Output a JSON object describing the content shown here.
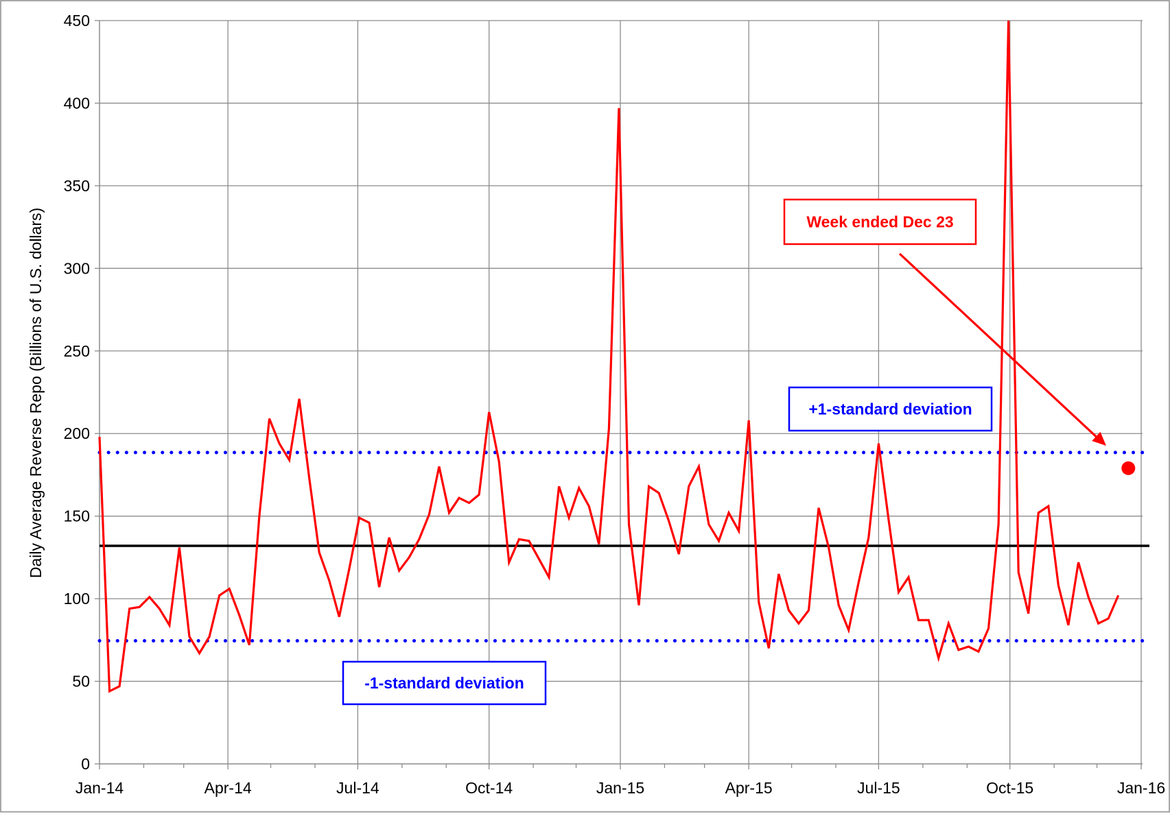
{
  "chart_data": {
    "type": "line",
    "ylabel": "Daily Average Reverse Repo (Billions of U.S. dollars)",
    "xlabel": "",
    "ylim": [
      0,
      450
    ],
    "yticks": [
      0,
      50,
      100,
      150,
      200,
      250,
      300,
      350,
      400,
      450
    ],
    "xlim": [
      "2014-01-01",
      "2016-01-01"
    ],
    "xticks": [
      "Jan-14",
      "Apr-14",
      "Jul-14",
      "Oct-14",
      "Jan-15",
      "Apr-15",
      "Jul-15",
      "Oct-15",
      "Jan-16"
    ],
    "grid": true,
    "series": [
      {
        "color": "#ff0000",
        "x": [
          "2014-01-01",
          "2014-01-08",
          "2014-01-15",
          "2014-01-22",
          "2014-01-29",
          "2014-02-05",
          "2014-02-12",
          "2014-02-19",
          "2014-02-26",
          "2014-03-05",
          "2014-03-12",
          "2014-03-19",
          "2014-03-26",
          "2014-04-02",
          "2014-04-09",
          "2014-04-16",
          "2014-04-23",
          "2014-04-30",
          "2014-05-07",
          "2014-05-14",
          "2014-05-21",
          "2014-05-28",
          "2014-06-04",
          "2014-06-11",
          "2014-06-18",
          "2014-06-25",
          "2014-07-02",
          "2014-07-09",
          "2014-07-16",
          "2014-07-23",
          "2014-07-30",
          "2014-08-06",
          "2014-08-13",
          "2014-08-20",
          "2014-08-27",
          "2014-09-03",
          "2014-09-10",
          "2014-09-17",
          "2014-09-24",
          "2014-10-01",
          "2014-10-08",
          "2014-10-15",
          "2014-10-22",
          "2014-10-29",
          "2014-11-05",
          "2014-11-12",
          "2014-11-19",
          "2014-11-26",
          "2014-12-03",
          "2014-12-10",
          "2014-12-17",
          "2014-12-24",
          "2014-12-31",
          "2015-01-07",
          "2015-01-14",
          "2015-01-21",
          "2015-01-28",
          "2015-02-04",
          "2015-02-11",
          "2015-02-18",
          "2015-02-25",
          "2015-03-04",
          "2015-03-11",
          "2015-03-18",
          "2015-03-25",
          "2015-04-01",
          "2015-04-08",
          "2015-04-15",
          "2015-04-22",
          "2015-04-29",
          "2015-05-06",
          "2015-05-13",
          "2015-05-20",
          "2015-05-27",
          "2015-06-03",
          "2015-06-10",
          "2015-06-17",
          "2015-06-24",
          "2015-07-01",
          "2015-07-08",
          "2015-07-15",
          "2015-07-22",
          "2015-07-29",
          "2015-08-05",
          "2015-08-12",
          "2015-08-19",
          "2015-08-26",
          "2015-09-02",
          "2015-09-09",
          "2015-09-16",
          "2015-09-23",
          "2015-09-30",
          "2015-10-07",
          "2015-10-14",
          "2015-10-21",
          "2015-10-28",
          "2015-11-04",
          "2015-11-11",
          "2015-11-18",
          "2015-11-25",
          "2015-12-02",
          "2015-12-09",
          "2015-12-16"
        ],
        "values": [
          198,
          44,
          47,
          94,
          95,
          101,
          94,
          84,
          131,
          77,
          67,
          77,
          102,
          106,
          90,
          72,
          150,
          209,
          194,
          184,
          221,
          173,
          128,
          111,
          89,
          118,
          149,
          146,
          107,
          137,
          117,
          125,
          136,
          151,
          180,
          152,
          161,
          158,
          163,
          213,
          183,
          122,
          136,
          135,
          124,
          113,
          168,
          149,
          167,
          156,
          133,
          203,
          397,
          145,
          96,
          168,
          164,
          147,
          127,
          168,
          180,
          145,
          135,
          152,
          141,
          208,
          98,
          70,
          115,
          93,
          85,
          93,
          155,
          131,
          96,
          81,
          110,
          137,
          194,
          148,
          104,
          113,
          87,
          87,
          64,
          85,
          69,
          71,
          68,
          82,
          145,
          450,
          116,
          91,
          152,
          156,
          108,
          84,
          122,
          101,
          85,
          88,
          102
        ]
      }
    ],
    "points": [
      {
        "x": "2015-12-23",
        "y": 179,
        "color": "#ff0000"
      }
    ],
    "reference_lines": [
      {
        "y": 132,
        "color": "#000000",
        "style": "solid"
      },
      {
        "y": 188.5,
        "color": "#0000ff",
        "style": "dotted"
      },
      {
        "y": 74.5,
        "color": "#0000ff",
        "style": "dotted"
      }
    ],
    "annotations": [
      {
        "text": "+1-standard deviation",
        "color": "#0000ff"
      },
      {
        "text": "-1-standard deviation",
        "color": "#0000ff"
      },
      {
        "text": "Week ended Dec 23",
        "color": "#ff0000"
      }
    ]
  }
}
